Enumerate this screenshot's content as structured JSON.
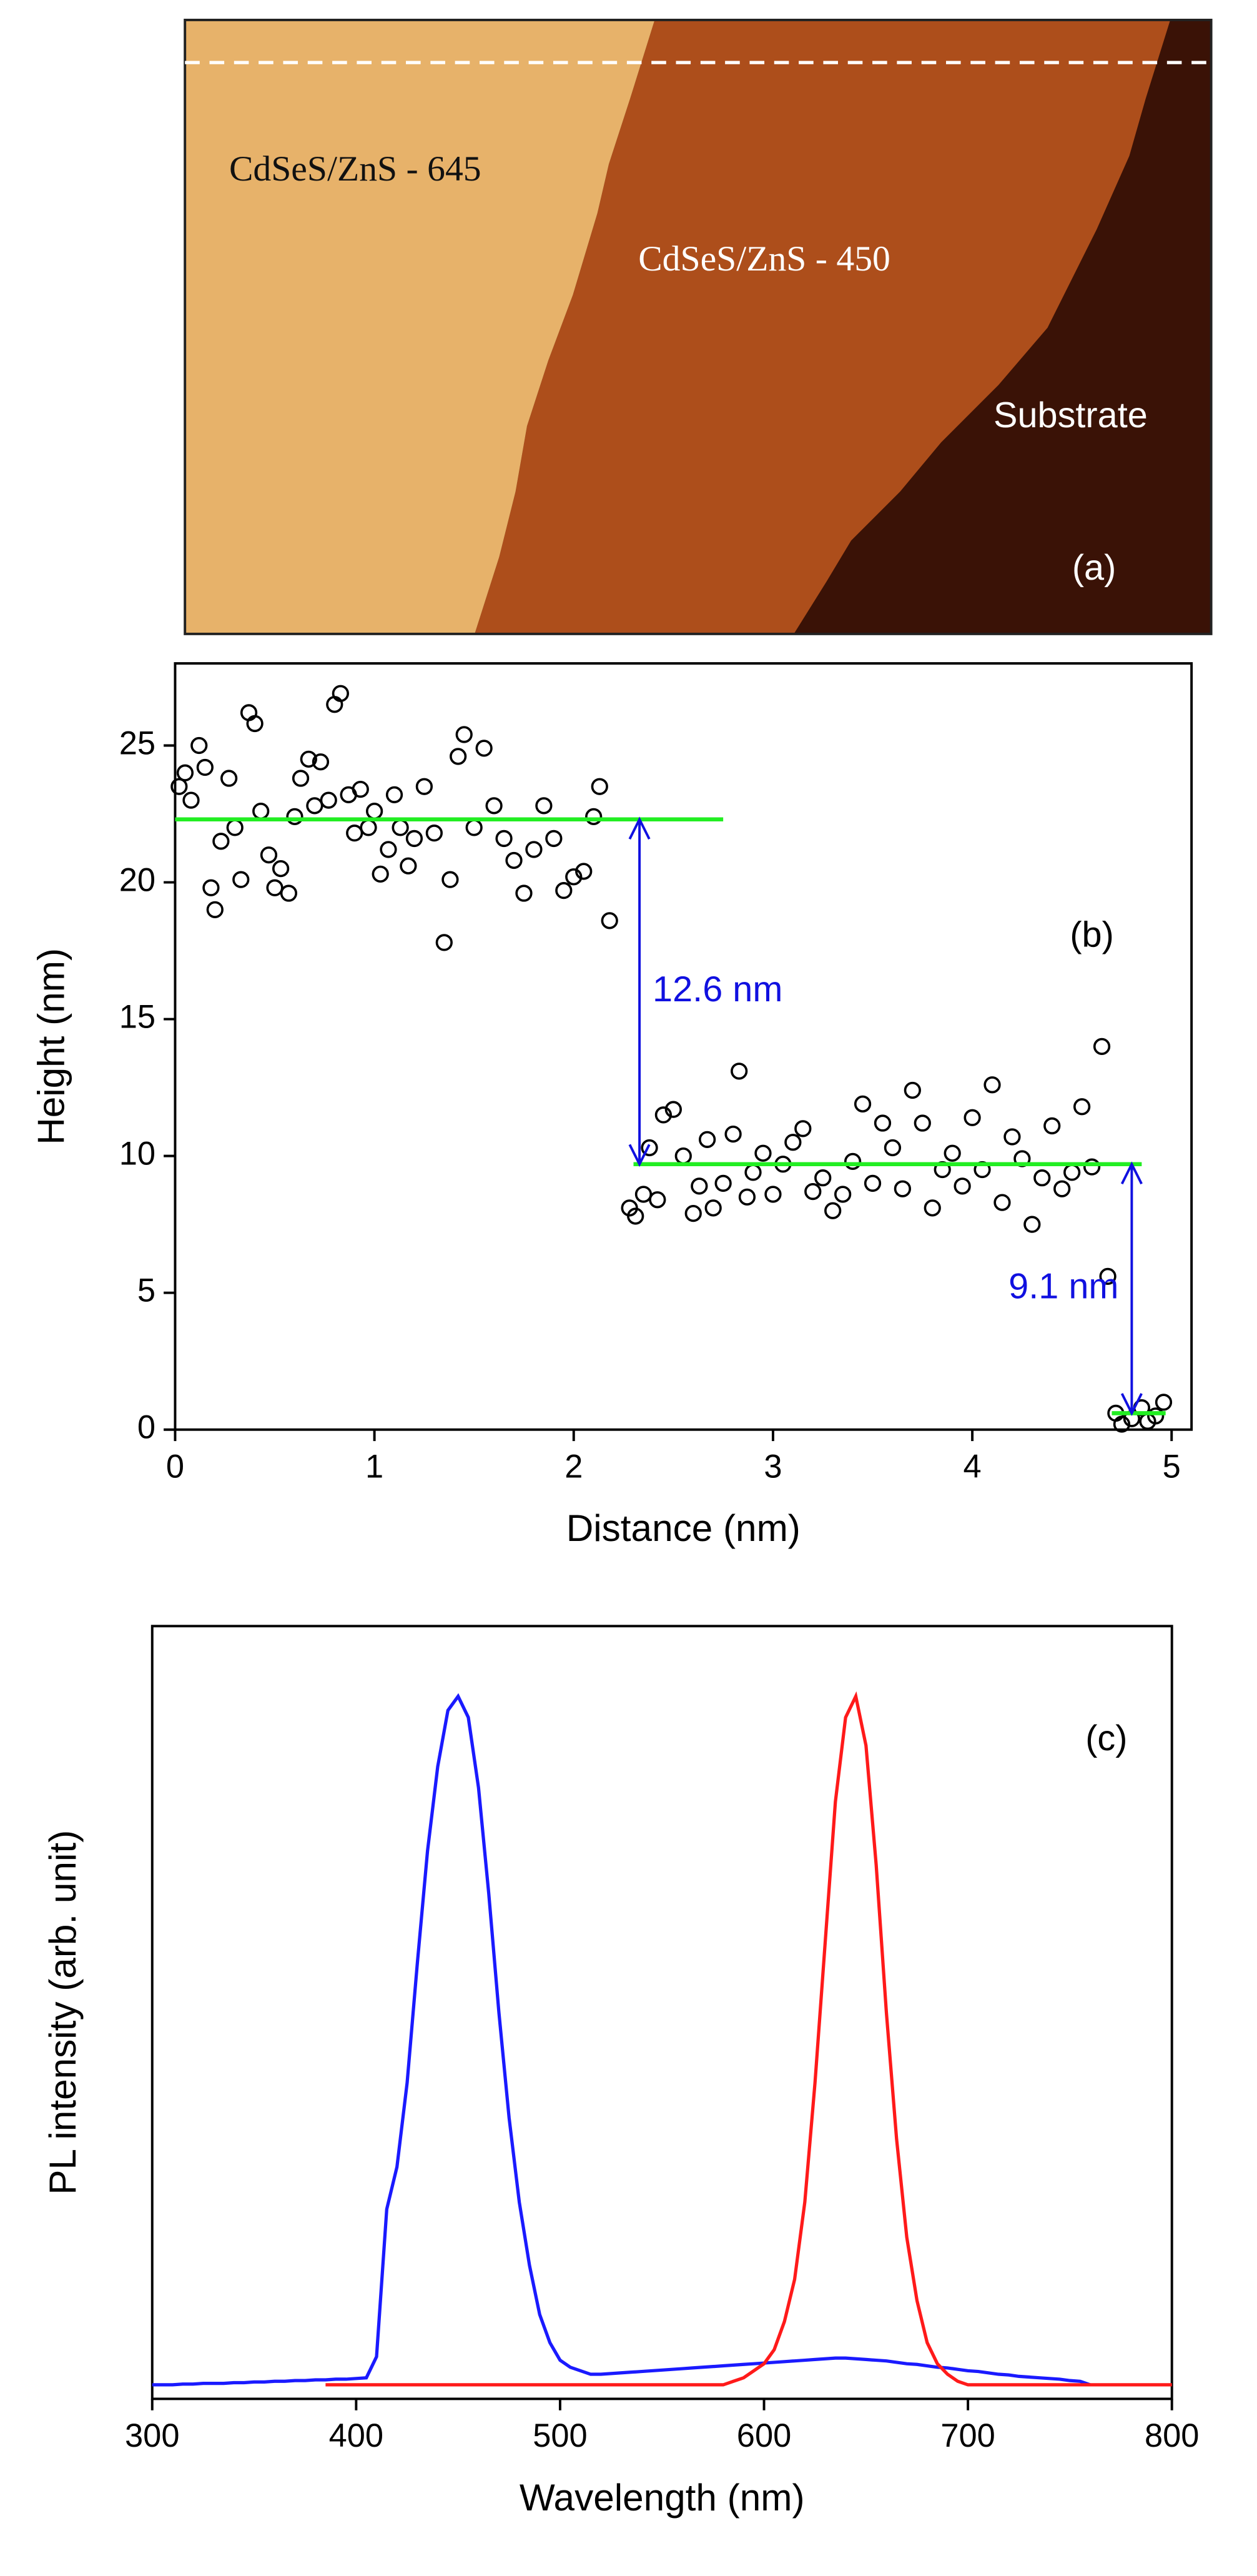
{
  "chart_data": [
    {
      "type": "image",
      "annotations": [
        {
          "text": "CdSeS/ZnS - 645"
        },
        {
          "text": "CdSeS/ZnS - 450"
        },
        {
          "text": "Substrate"
        }
      ],
      "panel_label": "(a)"
    },
    {
      "type": "scatter",
      "xlabel": "Distance (nm)",
      "ylabel": "Height (nm)",
      "panel_label": "(b)",
      "xlim": [
        0,
        5.1
      ],
      "ylim": [
        0,
        28
      ],
      "xticks": [
        0,
        1,
        2,
        3,
        4,
        5
      ],
      "yticks": [
        0,
        5,
        10,
        15,
        20,
        25
      ],
      "color": "#000000",
      "x": [
        0.02,
        0.05,
        0.08,
        0.12,
        0.15,
        0.18,
        0.2,
        0.23,
        0.27,
        0.3,
        0.33,
        0.37,
        0.4,
        0.43,
        0.47,
        0.5,
        0.53,
        0.57,
        0.6,
        0.63,
        0.67,
        0.7,
        0.73,
        0.77,
        0.8,
        0.83,
        0.87,
        0.9,
        0.93,
        0.97,
        1.0,
        1.03,
        1.07,
        1.1,
        1.13,
        1.17,
        1.2,
        1.25,
        1.3,
        1.35,
        1.38,
        1.42,
        1.45,
        1.5,
        1.55,
        1.6,
        1.65,
        1.7,
        1.75,
        1.8,
        1.85,
        1.9,
        1.95,
        2.0,
        2.05,
        2.1,
        2.13,
        2.18,
        2.28,
        2.31,
        2.35,
        2.38,
        2.42,
        2.45,
        2.5,
        2.55,
        2.6,
        2.63,
        2.67,
        2.7,
        2.75,
        2.8,
        2.83,
        2.87,
        2.9,
        2.95,
        3.0,
        3.05,
        3.1,
        3.15,
        3.2,
        3.25,
        3.3,
        3.35,
        3.4,
        3.45,
        3.5,
        3.55,
        3.6,
        3.65,
        3.7,
        3.75,
        3.8,
        3.85,
        3.9,
        3.95,
        4.0,
        4.05,
        4.1,
        4.15,
        4.2,
        4.25,
        4.3,
        4.35,
        4.4,
        4.45,
        4.5,
        4.55,
        4.6,
        4.65,
        4.68,
        4.72,
        4.75,
        4.8,
        4.85,
        4.88,
        4.92,
        4.96
      ],
      "values": [
        23.5,
        24.0,
        23.0,
        25.0,
        24.2,
        19.8,
        19.0,
        21.5,
        23.8,
        22.0,
        20.1,
        26.2,
        25.8,
        22.6,
        21.0,
        19.8,
        20.5,
        19.6,
        22.4,
        23.8,
        24.5,
        22.8,
        24.4,
        23.0,
        26.5,
        26.9,
        23.2,
        21.8,
        23.4,
        22.0,
        22.6,
        20.3,
        21.2,
        23.2,
        22.0,
        20.6,
        21.6,
        23.5,
        21.8,
        17.8,
        20.1,
        24.6,
        25.4,
        22.0,
        24.9,
        22.8,
        21.6,
        20.8,
        19.6,
        21.2,
        22.8,
        21.6,
        19.7,
        20.2,
        20.4,
        22.4,
        23.5,
        18.6,
        8.1,
        7.8,
        8.6,
        10.3,
        8.4,
        11.5,
        11.7,
        10.0,
        7.9,
        8.9,
        10.6,
        8.1,
        9.0,
        10.8,
        13.1,
        8.5,
        9.4,
        10.1,
        8.6,
        9.7,
        10.5,
        11.0,
        8.7,
        9.2,
        8.0,
        8.6,
        9.8,
        11.9,
        9.0,
        11.2,
        10.3,
        8.8,
        12.4,
        11.2,
        8.1,
        9.5,
        10.1,
        8.9,
        11.4,
        9.5,
        12.6,
        8.3,
        10.7,
        9.9,
        7.5,
        9.2,
        11.1,
        8.8,
        9.4,
        11.8,
        9.6,
        14.0,
        5.6,
        0.6,
        0.2,
        0.4,
        0.8,
        0.3,
        0.5,
        1.0
      ],
      "levels": [
        {
          "x0": 0,
          "x1": 2.75,
          "y": 22.3,
          "color": "#22ee22"
        },
        {
          "x0": 2.3,
          "x1": 4.85,
          "y": 9.7,
          "color": "#22ee22"
        },
        {
          "x0": 4.7,
          "x1": 4.97,
          "y": 0.6,
          "color": "#22ee22"
        }
      ],
      "arrows": [
        {
          "x": 2.33,
          "y0": 22.3,
          "y1": 9.7,
          "label": "12.6 nm",
          "color": "#1010e0"
        },
        {
          "x": 4.8,
          "y0": 9.7,
          "y1": 0.6,
          "label": "9.1 nm",
          "color": "#1010e0"
        }
      ]
    },
    {
      "type": "line",
      "xlabel": "Wavelength (nm)",
      "ylabel": "PL intensity (arb. unit)",
      "panel_label": "(c)",
      "xlim": [
        300,
        800
      ],
      "ylim": [
        0,
        1.1
      ],
      "xticks": [
        300,
        400,
        500,
        600,
        700,
        800
      ],
      "x": [
        300,
        305,
        310,
        315,
        320,
        325,
        330,
        335,
        340,
        345,
        350,
        355,
        360,
        365,
        370,
        375,
        380,
        385,
        390,
        395,
        400,
        405,
        410,
        415,
        420,
        425,
        430,
        435,
        440,
        445,
        450,
        455,
        460,
        465,
        470,
        475,
        480,
        485,
        490,
        495,
        500,
        505,
        510,
        515,
        520,
        525,
        530,
        535,
        540,
        545,
        550,
        555,
        560,
        565,
        570,
        575,
        580,
        585,
        590,
        595,
        600,
        605,
        610,
        615,
        620,
        625,
        630,
        635,
        640,
        645,
        650,
        655,
        660,
        665,
        670,
        675,
        680,
        685,
        690,
        695,
        700,
        705,
        710,
        715,
        720,
        725,
        730,
        735,
        740,
        745,
        750,
        755,
        760,
        765,
        770,
        775,
        780,
        785,
        790,
        795,
        800
      ],
      "series": [
        {
          "color": "#1a1aff",
          "values": [
            0.02,
            0.02,
            0.02,
            0.021,
            0.021,
            0.022,
            0.022,
            0.022,
            0.023,
            0.023,
            0.024,
            0.024,
            0.025,
            0.025,
            0.026,
            0.026,
            0.027,
            0.027,
            0.028,
            0.028,
            0.029,
            0.03,
            0.06,
            0.27,
            0.33,
            0.45,
            0.62,
            0.78,
            0.9,
            0.98,
            1.0,
            0.97,
            0.87,
            0.72,
            0.55,
            0.4,
            0.28,
            0.19,
            0.12,
            0.08,
            0.055,
            0.045,
            0.04,
            0.035,
            0.035,
            0.036,
            0.037,
            0.038,
            0.039,
            0.04,
            0.041,
            0.042,
            0.043,
            0.044,
            0.045,
            0.046,
            0.047,
            0.048,
            0.049,
            0.05,
            0.051,
            0.052,
            0.053,
            0.054,
            0.055,
            0.056,
            0.057,
            0.058,
            0.058,
            0.057,
            0.056,
            0.055,
            0.054,
            0.052,
            0.05,
            0.049,
            0.047,
            0.045,
            0.044,
            0.042,
            0.04,
            0.039,
            0.037,
            0.035,
            0.034,
            0.032,
            0.031,
            0.03,
            0.029,
            0.028,
            0.026,
            0.025,
            0.02,
            null,
            null,
            null,
            null,
            null,
            null,
            null,
            null
          ]
        },
        {
          "color": "#ff1a1a",
          "values": [
            null,
            null,
            null,
            null,
            null,
            null,
            null,
            null,
            null,
            null,
            null,
            null,
            null,
            null,
            null,
            null,
            null,
            0.02,
            0.02,
            0.02,
            0.02,
            0.02,
            0.02,
            0.02,
            0.02,
            0.02,
            0.02,
            0.02,
            0.02,
            0.02,
            0.02,
            0.02,
            0.02,
            0.02,
            0.02,
            0.02,
            0.02,
            0.02,
            0.02,
            0.02,
            0.02,
            0.02,
            0.02,
            0.02,
            0.02,
            0.02,
            0.02,
            0.02,
            0.02,
            0.02,
            0.02,
            0.02,
            0.02,
            0.02,
            0.02,
            0.02,
            0.02,
            0.025,
            0.03,
            0.04,
            0.05,
            0.07,
            0.11,
            0.17,
            0.28,
            0.45,
            0.65,
            0.85,
            0.97,
            1.0,
            0.93,
            0.76,
            0.55,
            0.37,
            0.23,
            0.14,
            0.08,
            0.05,
            0.035,
            0.025,
            0.02,
            0.02,
            0.02,
            0.02,
            0.02,
            0.02,
            0.02,
            0.02,
            0.02,
            0.02,
            0.02,
            0.02,
            0.02,
            0.02,
            0.02,
            0.02,
            0.02,
            0.02,
            0.02,
            0.02,
            0.02
          ]
        }
      ]
    }
  ]
}
